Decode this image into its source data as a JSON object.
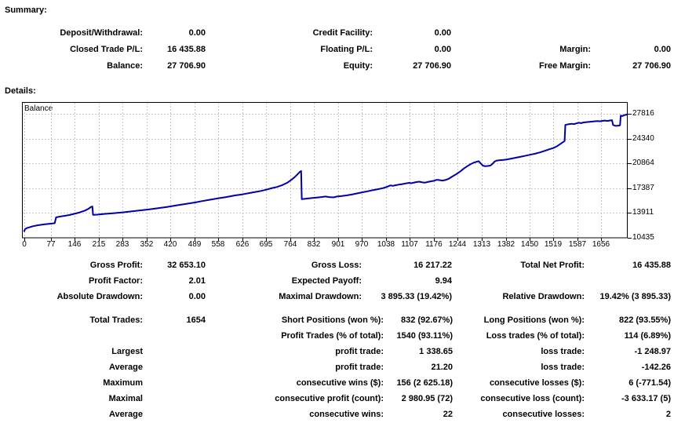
{
  "summary": {
    "heading": "Summary:",
    "rows": [
      [
        "Deposit/Withdrawal:",
        "0.00",
        "Credit Facility:",
        "0.00",
        "",
        ""
      ],
      [
        "Closed Trade P/L:",
        "16 435.88",
        "Floating P/L:",
        "0.00",
        "Margin:",
        "0.00"
      ],
      [
        "Balance:",
        "27 706.90",
        "Equity:",
        "27 706.90",
        "Free Margin:",
        "27 706.90"
      ]
    ]
  },
  "details": {
    "heading": "Details:",
    "stats1": [
      [
        "Gross Profit:",
        "32 653.10",
        "Gross Loss:",
        "16 217.22",
        "Total Net Profit:",
        "16 435.88"
      ],
      [
        "Profit Factor:",
        "2.01",
        "Expected Payoff:",
        "9.94",
        "",
        ""
      ],
      [
        "Absolute Drawdown:",
        "0.00",
        "Maximal Drawdown:",
        "3 895.33 (19.42%)",
        "Relative Drawdown:",
        "19.42% (3 895.33)"
      ]
    ],
    "stats2": [
      [
        "Total Trades:",
        "1654",
        "Short Positions (won %):",
        "832 (92.67%)",
        "Long Positions (won %):",
        "822 (93.55%)"
      ],
      [
        "",
        "",
        "Profit Trades (% of total):",
        "1540 (93.11%)",
        "Loss trades (% of total):",
        "114 (6.89%)"
      ],
      [
        "Largest",
        "",
        "profit trade:",
        "1 338.65",
        "loss trade:",
        "-1 248.97"
      ],
      [
        "Average",
        "",
        "profit trade:",
        "21.20",
        "loss trade:",
        "-142.26"
      ],
      [
        "Maximum",
        "",
        "consecutive wins ($):",
        "156 (2 625.18)",
        "consecutive losses ($):",
        "6 (-771.54)"
      ],
      [
        "Maximal",
        "",
        "consecutive profit (count):",
        "2 980.95 (72)",
        "consecutive loss (count):",
        "-3 633.17 (5)"
      ],
      [
        "Average",
        "",
        "consecutive wins:",
        "22",
        "consecutive losses:",
        "2"
      ]
    ]
  },
  "chart_data": {
    "type": "line",
    "title": "Balance",
    "xlabel": "",
    "ylabel": "",
    "xlim": [
      0,
      1732
    ],
    "ylim": [
      10435,
      29467
    ],
    "x_ticks": [
      0,
      77,
      146,
      215,
      283,
      352,
      420,
      489,
      558,
      626,
      695,
      764,
      832,
      901,
      970,
      1038,
      1107,
      1176,
      1244,
      1313,
      1382,
      1450,
      1519,
      1587,
      1656
    ],
    "y_ticks": [
      10435,
      13911,
      17387,
      20864,
      24340,
      27816
    ],
    "grid": "dashed",
    "grid_color": "#c8c8c8",
    "legend_position": "none",
    "series": [
      {
        "name": "Balance",
        "color": "#0000a8",
        "points": [
          [
            0,
            11271
          ],
          [
            3,
            11650
          ],
          [
            8,
            11800
          ],
          [
            15,
            11900
          ],
          [
            25,
            12050
          ],
          [
            40,
            12200
          ],
          [
            60,
            12330
          ],
          [
            80,
            12430
          ],
          [
            88,
            12480
          ],
          [
            92,
            13300
          ],
          [
            100,
            13380
          ],
          [
            115,
            13500
          ],
          [
            130,
            13620
          ],
          [
            145,
            13800
          ],
          [
            160,
            14000
          ],
          [
            175,
            14250
          ],
          [
            185,
            14500
          ],
          [
            192,
            14750
          ],
          [
            196,
            14820
          ],
          [
            198,
            13650
          ],
          [
            210,
            13680
          ],
          [
            230,
            13780
          ],
          [
            255,
            13880
          ],
          [
            283,
            14000
          ],
          [
            310,
            14150
          ],
          [
            335,
            14280
          ],
          [
            360,
            14420
          ],
          [
            385,
            14580
          ],
          [
            410,
            14760
          ],
          [
            435,
            14960
          ],
          [
            460,
            15150
          ],
          [
            489,
            15380
          ],
          [
            510,
            15570
          ],
          [
            535,
            15780
          ],
          [
            558,
            15980
          ],
          [
            580,
            16150
          ],
          [
            605,
            16380
          ],
          [
            626,
            16520
          ],
          [
            645,
            16700
          ],
          [
            665,
            16870
          ],
          [
            680,
            17000
          ],
          [
            695,
            17180
          ],
          [
            710,
            17380
          ],
          [
            725,
            17550
          ],
          [
            740,
            17800
          ],
          [
            755,
            18150
          ],
          [
            768,
            18600
          ],
          [
            778,
            19000
          ],
          [
            786,
            19400
          ],
          [
            792,
            19700
          ],
          [
            795,
            19800
          ],
          [
            797,
            15850
          ],
          [
            810,
            15920
          ],
          [
            825,
            16000
          ],
          [
            840,
            16080
          ],
          [
            855,
            16160
          ],
          [
            865,
            16220
          ],
          [
            875,
            16150
          ],
          [
            888,
            16100
          ],
          [
            898,
            16220
          ],
          [
            910,
            16280
          ],
          [
            925,
            16380
          ],
          [
            940,
            16500
          ],
          [
            955,
            16650
          ],
          [
            970,
            16800
          ],
          [
            985,
            16950
          ],
          [
            1000,
            17100
          ],
          [
            1015,
            17250
          ],
          [
            1030,
            17400
          ],
          [
            1042,
            17600
          ],
          [
            1052,
            17780
          ],
          [
            1058,
            17720
          ],
          [
            1065,
            17800
          ],
          [
            1075,
            17880
          ],
          [
            1085,
            17960
          ],
          [
            1095,
            18060
          ],
          [
            1105,
            18140
          ],
          [
            1110,
            18080
          ],
          [
            1116,
            18140
          ],
          [
            1124,
            18240
          ],
          [
            1134,
            18300
          ],
          [
            1143,
            18200
          ],
          [
            1150,
            18160
          ],
          [
            1158,
            18260
          ],
          [
            1168,
            18360
          ],
          [
            1176,
            18420
          ],
          [
            1184,
            18560
          ],
          [
            1192,
            18520
          ],
          [
            1200,
            18460
          ],
          [
            1208,
            18520
          ],
          [
            1218,
            18700
          ],
          [
            1228,
            19000
          ],
          [
            1240,
            19350
          ],
          [
            1252,
            19750
          ],
          [
            1262,
            20150
          ],
          [
            1272,
            20480
          ],
          [
            1282,
            20780
          ],
          [
            1292,
            21000
          ],
          [
            1300,
            21120
          ],
          [
            1305,
            21160
          ],
          [
            1310,
            20880
          ],
          [
            1316,
            20580
          ],
          [
            1322,
            20470
          ],
          [
            1330,
            20500
          ],
          [
            1338,
            20560
          ],
          [
            1344,
            20800
          ],
          [
            1350,
            21120
          ],
          [
            1356,
            21260
          ],
          [
            1366,
            21310
          ],
          [
            1376,
            21360
          ],
          [
            1386,
            21430
          ],
          [
            1398,
            21530
          ],
          [
            1412,
            21670
          ],
          [
            1426,
            21810
          ],
          [
            1440,
            21950
          ],
          [
            1452,
            22070
          ],
          [
            1466,
            22220
          ],
          [
            1480,
            22400
          ],
          [
            1494,
            22620
          ],
          [
            1508,
            22850
          ],
          [
            1519,
            23020
          ],
          [
            1530,
            23300
          ],
          [
            1540,
            23620
          ],
          [
            1548,
            23900
          ],
          [
            1551,
            24000
          ],
          [
            1553,
            26250
          ],
          [
            1562,
            26350
          ],
          [
            1572,
            26420
          ],
          [
            1578,
            26360
          ],
          [
            1584,
            26460
          ],
          [
            1592,
            26560
          ],
          [
            1598,
            26510
          ],
          [
            1606,
            26610
          ],
          [
            1616,
            26660
          ],
          [
            1626,
            26710
          ],
          [
            1636,
            26760
          ],
          [
            1645,
            26810
          ],
          [
            1651,
            26760
          ],
          [
            1658,
            26820
          ],
          [
            1666,
            26870
          ],
          [
            1674,
            26820
          ],
          [
            1681,
            26880
          ],
          [
            1687,
            26930
          ],
          [
            1690,
            26250
          ],
          [
            1697,
            26120
          ],
          [
            1705,
            26160
          ],
          [
            1710,
            26200
          ],
          [
            1712,
            27560
          ],
          [
            1717,
            27500
          ],
          [
            1721,
            27610
          ],
          [
            1726,
            27660
          ],
          [
            1730,
            27720
          ],
          [
            1733,
            27816
          ]
        ]
      }
    ]
  }
}
